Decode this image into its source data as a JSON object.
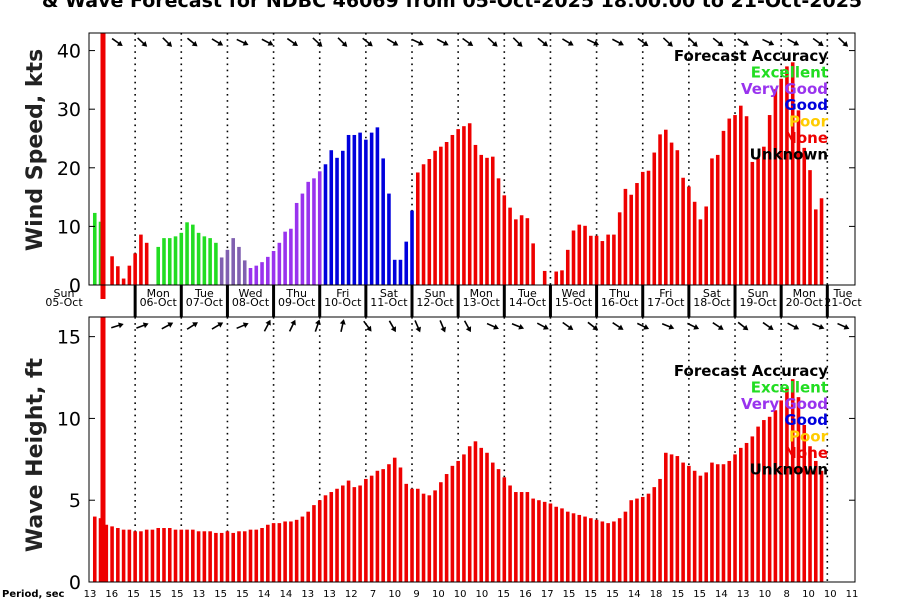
{
  "title": "& Wave Forecast for NDBC 46069 from 05-Oct-2025 18:00:00 to 21-Oct-2025",
  "legend": {
    "title": "Forecast Accuracy",
    "items": [
      {
        "label": "Excellent",
        "color": "#22dd22"
      },
      {
        "label": "Very Good",
        "color": "#9933ee"
      },
      {
        "label": "Good",
        "color": "#0000dd"
      },
      {
        "label": "Poor",
        "color": "#ffcc00"
      },
      {
        "label": "None",
        "color": "#ee0000"
      },
      {
        "label": "Unknown",
        "color": "#000000"
      }
    ]
  },
  "days": [
    {
      "dow": "Sun",
      "date": "05-Oct"
    },
    {
      "dow": "Mon",
      "date": "06-Oct"
    },
    {
      "dow": "Tue",
      "date": "07-Oct"
    },
    {
      "dow": "Wed",
      "date": "08-Oct"
    },
    {
      "dow": "Thu",
      "date": "09-Oct"
    },
    {
      "dow": "Fri",
      "date": "10-Oct"
    },
    {
      "dow": "Sat",
      "date": "11-Oct"
    },
    {
      "dow": "Sun",
      "date": "12-Oct"
    },
    {
      "dow": "Mon",
      "date": "13-Oct"
    },
    {
      "dow": "Tue",
      "date": "14-Oct"
    },
    {
      "dow": "Wed",
      "date": "15-Oct"
    },
    {
      "dow": "Thu",
      "date": "16-Oct"
    },
    {
      "dow": "Fri",
      "date": "17-Oct"
    },
    {
      "dow": "Sat",
      "date": "18-Oct"
    },
    {
      "dow": "Sun",
      "date": "19-Oct"
    },
    {
      "dow": "Mon",
      "date": "20-Oct"
    },
    {
      "dow": "Tue",
      "date": "21-Oct"
    }
  ],
  "period_label": "Period, sec",
  "period_ticks": [
    "13",
    "16",
    "15",
    "15",
    "15",
    "13",
    "15",
    "15",
    "14",
    "14",
    "13",
    "13",
    "12",
    "7",
    "10",
    "9",
    "10",
    "10",
    "10",
    "15",
    "16",
    "17",
    "15",
    "15",
    "15",
    "14",
    "18",
    "15",
    "15",
    "14",
    "13",
    "10",
    "8",
    "10",
    "10",
    "11"
  ],
  "chart_data": [
    {
      "type": "bar",
      "title": "Wind Speed",
      "ylabel": "Wind Speed, kts",
      "ylim": [
        0,
        43
      ],
      "yticks": [
        0,
        10,
        20,
        30,
        40
      ],
      "x_unit": "days since 05-Oct 00:00",
      "xlim": [
        0,
        16.6
      ],
      "bar_step_days": 0.125,
      "start_x": 0.125,
      "values": [
        12.3,
        10.8,
        0,
        4.9,
        3.2,
        1.1,
        3.3,
        5.4,
        8.6,
        7.2,
        0,
        6.5,
        8,
        8,
        8.3,
        8.9,
        10.7,
        10.3,
        8.9,
        8.3,
        8,
        7.2,
        4.7,
        6,
        8,
        6.5,
        4.2,
        2.9,
        3.3,
        3.9,
        4.8,
        5.8,
        7.2,
        9.1,
        9.6,
        14,
        15.6,
        17.6,
        18.2,
        19.4,
        20.6,
        23,
        21.7,
        22.9,
        25.6,
        25.6,
        26,
        24.8,
        26,
        26.9,
        21.6,
        15.6,
        4.3,
        4.3,
        7.4,
        12.7,
        19.2,
        20.6,
        21.5,
        22.9,
        23.6,
        24.4,
        25.6,
        26.6,
        27.1,
        27.6,
        23.9,
        22.2,
        21.7,
        21.9,
        18.2,
        15.3,
        13.2,
        11.2,
        11.9,
        11.4,
        7.1,
        0,
        2.4,
        0,
        2.3,
        2.5,
        6,
        9.3,
        10.3,
        10.1,
        8.4,
        8.4,
        7.5,
        8.6,
        8.6,
        12.4,
        16.4,
        15.4,
        17.4,
        19.3,
        19.5,
        22.6,
        25.7,
        26.5,
        24.3,
        23,
        18.3,
        16.8,
        14.2,
        11.2,
        13.4,
        21.6,
        22.2,
        26.3,
        28.4,
        29,
        30.6,
        28.8,
        21,
        21.6,
        23.6,
        29,
        33.4,
        35.2,
        37.3,
        38,
        29.8,
        23.4,
        19.6,
        12.9,
        14.8
      ],
      "quality_segments": [
        {
          "from": 0,
          "to": 2,
          "rating": "Excellent"
        },
        {
          "from": 2,
          "to": 10,
          "rating": "None"
        },
        {
          "from": 10,
          "to": 22,
          "rating": "Excellent"
        },
        {
          "from": 22,
          "to": 27,
          "rating": "Mixed"
        },
        {
          "from": 27,
          "to": 40,
          "rating": "Very Good"
        },
        {
          "from": 40,
          "to": 52,
          "rating": "Good"
        },
        {
          "from": 52,
          "to": 56,
          "rating": "Good"
        },
        {
          "from": 56,
          "to": 125,
          "rating": "None"
        }
      ]
    },
    {
      "type": "bar",
      "title": "Wave Height",
      "ylabel": "Wave Height, ft",
      "ylim": [
        0,
        16.2
      ],
      "yticks": [
        0,
        5,
        10,
        15
      ],
      "x_unit": "days since 05-Oct 00:00",
      "xlim": [
        0,
        16.6
      ],
      "bar_step_days": 0.125,
      "start_x": 0.125,
      "values": [
        4,
        3.9,
        3.5,
        3.4,
        3.3,
        3.2,
        3.2,
        3.1,
        3.1,
        3.2,
        3.2,
        3.3,
        3.3,
        3.3,
        3.2,
        3.2,
        3.2,
        3.2,
        3.1,
        3.1,
        3.1,
        3,
        3,
        3.1,
        3,
        3.1,
        3.1,
        3.2,
        3.2,
        3.3,
        3.5,
        3.6,
        3.6,
        3.7,
        3.7,
        3.8,
        4,
        4.3,
        4.7,
        5,
        5.3,
        5.5,
        5.7,
        5.9,
        6.2,
        5.8,
        5.9,
        6.3,
        6.5,
        6.8,
        6.9,
        7.2,
        7.6,
        7,
        6,
        5.7,
        5.7,
        5.4,
        5.3,
        5.6,
        6.1,
        6.6,
        7.1,
        7.4,
        7.8,
        8.3,
        8.6,
        8.2,
        7.9,
        7.3,
        6.9,
        6.4,
        5.9,
        5.5,
        5.5,
        5.5,
        5.1,
        5,
        4.9,
        4.8,
        4.6,
        4.5,
        4.3,
        4.2,
        4.1,
        4,
        3.9,
        3.8,
        3.7,
        3.6,
        3.7,
        3.9,
        4.3,
        5,
        5.1,
        5.2,
        5.4,
        5.8,
        6.3,
        7.9,
        7.8,
        7.7,
        7.3,
        7.1,
        6.8,
        6.5,
        6.7,
        7.3,
        7.2,
        7.2,
        7.4,
        7.8,
        8.2,
        8.5,
        8.9,
        9.5,
        9.9,
        10.1,
        10.5,
        11.1,
        11.8,
        12.4,
        11.3,
        9.6,
        8.3,
        7.4,
        6.8
      ]
    }
  ]
}
